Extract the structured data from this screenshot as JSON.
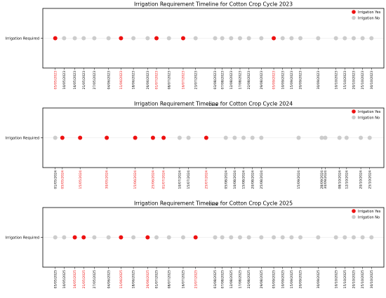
{
  "colors": {
    "yes": "#ee1111",
    "no": "#cccccc",
    "axis": "#000000",
    "yes_label": "#ee1111",
    "no_label": "#000000"
  },
  "chart_data": [
    {
      "type": "scatter",
      "title": "Irrigation Requirement Timeline for Cotton Crop Cycle 2023",
      "xlabel": "Date",
      "ylabel_tick": "Irrigation Required",
      "legend": [
        "Irrigation Yes",
        "Irrigation No"
      ],
      "legend_position": "top-right",
      "xlim": [
        "2023-04-28",
        "2023-11-06"
      ],
      "events": [
        {
          "date": "2023-05-05",
          "label": "05/05/2023",
          "irrigation": "Yes"
        },
        {
          "date": "2023-05-10",
          "label": "10/05/2023",
          "irrigation": "No"
        },
        {
          "date": "2023-05-16",
          "label": "16/05/2023",
          "irrigation": "No"
        },
        {
          "date": "2023-05-21",
          "label": "21/05/2023",
          "irrigation": "No"
        },
        {
          "date": "2023-05-27",
          "label": "27/05/2023",
          "irrigation": "No"
        },
        {
          "date": "2023-06-04",
          "label": "04/06/2023",
          "irrigation": "No"
        },
        {
          "date": "2023-06-11",
          "label": "11/06/2023",
          "irrigation": "Yes"
        },
        {
          "date": "2023-06-18",
          "label": "18/06/2023",
          "irrigation": "No"
        },
        {
          "date": "2023-06-26",
          "label": "26/06/2023",
          "irrigation": "No"
        },
        {
          "date": "2023-07-01",
          "label": "01/07/2023",
          "irrigation": "Yes"
        },
        {
          "date": "2023-07-08",
          "label": "08/07/2023",
          "irrigation": "No"
        },
        {
          "date": "2023-07-16",
          "label": "16/07/2023",
          "irrigation": "Yes"
        },
        {
          "date": "2023-07-23",
          "label": "23/07/2023",
          "irrigation": "No"
        },
        {
          "date": "2023-08-03",
          "label": "03/08/2023",
          "irrigation": "No"
        },
        {
          "date": "2023-08-07",
          "label": "07/08/2023",
          "irrigation": "No"
        },
        {
          "date": "2023-08-12",
          "label": "12/08/2023",
          "irrigation": "No"
        },
        {
          "date": "2023-08-17",
          "label": "17/08/2023",
          "irrigation": "No"
        },
        {
          "date": "2023-08-22",
          "label": "22/08/2023",
          "irrigation": "No"
        },
        {
          "date": "2023-08-29",
          "label": "29/08/2023",
          "irrigation": "No"
        },
        {
          "date": "2023-09-05",
          "label": "05/09/2023",
          "irrigation": "Yes"
        },
        {
          "date": "2023-09-10",
          "label": "10/09/2023",
          "irrigation": "No"
        },
        {
          "date": "2023-09-15",
          "label": "15/09/2023",
          "irrigation": "No"
        },
        {
          "date": "2023-09-20",
          "label": "20/09/2023",
          "irrigation": "No"
        },
        {
          "date": "2023-09-30",
          "label": "30/09/2023",
          "irrigation": "No"
        },
        {
          "date": "2023-10-10",
          "label": "10/10/2023",
          "irrigation": "No"
        },
        {
          "date": "2023-10-15",
          "label": "15/10/2023",
          "irrigation": "No"
        },
        {
          "date": "2023-10-20",
          "label": "20/10/2023",
          "irrigation": "No"
        },
        {
          "date": "2023-10-25",
          "label": "25/10/2023",
          "irrigation": "No"
        },
        {
          "date": "2023-10-30",
          "label": "30/10/2023",
          "irrigation": "No"
        }
      ]
    },
    {
      "type": "scatter",
      "title": "Irrigation Requirement Timeline for Cotton Crop Cycle 2024",
      "xlabel": "Date",
      "ylabel_tick": "Irrigation Required",
      "legend": [
        "Irrigation Yes",
        "Irrigation No"
      ],
      "legend_position": "top-right",
      "xlim": [
        "2024-04-24",
        "2024-11-02"
      ],
      "events": [
        {
          "date": "2024-05-01",
          "label": "01/05/2024",
          "irrigation": "No"
        },
        {
          "date": "2024-05-05",
          "label": "05/05/2024",
          "irrigation": "Yes"
        },
        {
          "date": "2024-05-15",
          "label": "15/05/2024",
          "irrigation": "Yes"
        },
        {
          "date": "2024-05-30",
          "label": "30/05/2024",
          "irrigation": "Yes"
        },
        {
          "date": "2024-06-15",
          "label": "15/06/2024",
          "irrigation": "Yes"
        },
        {
          "date": "2024-06-25",
          "label": "25/06/2024",
          "irrigation": "Yes"
        },
        {
          "date": "2024-07-01",
          "label": "01/07/2024",
          "irrigation": "Yes"
        },
        {
          "date": "2024-07-10",
          "label": "10/07/2024",
          "irrigation": "No"
        },
        {
          "date": "2024-07-15",
          "label": "15/07/2024",
          "irrigation": "No"
        },
        {
          "date": "2024-07-25",
          "label": "25/07/2024",
          "irrigation": "Yes"
        },
        {
          "date": "2024-08-05",
          "label": "05/08/2024",
          "irrigation": "No"
        },
        {
          "date": "2024-08-10",
          "label": "10/08/2024",
          "irrigation": "No"
        },
        {
          "date": "2024-08-15",
          "label": "15/08/2024",
          "irrigation": "No"
        },
        {
          "date": "2024-08-20",
          "label": "20/08/2024",
          "irrigation": "No"
        },
        {
          "date": "2024-08-25",
          "label": "25/08/2024",
          "irrigation": "No"
        },
        {
          "date": "2024-09-15",
          "label": "15/09/2024",
          "irrigation": "No"
        },
        {
          "date": "2024-09-28",
          "label": "28/09/2024",
          "irrigation": "No"
        },
        {
          "date": "2024-09-30",
          "label": "30/09/2024",
          "irrigation": "No"
        },
        {
          "date": "2024-10-08",
          "label": "08/10/2024",
          "irrigation": "No"
        },
        {
          "date": "2024-10-12",
          "label": "12/10/2024",
          "irrigation": "No"
        },
        {
          "date": "2024-10-20",
          "label": "20/10/2024",
          "irrigation": "No"
        },
        {
          "date": "2024-10-25",
          "label": "25/10/2024",
          "irrigation": "No"
        }
      ]
    },
    {
      "type": "scatter",
      "title": "Irrigation Requirement Timeline for Cotton Crop Cycle 2025",
      "xlabel": "Date",
      "ylabel_tick": "Irrigation Required",
      "legend": [
        "Irrigation Yes",
        "Irrigation No"
      ],
      "legend_position": "top-right",
      "xlim": [
        "2025-04-28",
        "2025-11-06"
      ],
      "events": [
        {
          "date": "2025-05-05",
          "label": "05/05/2025",
          "irrigation": "No"
        },
        {
          "date": "2025-05-10",
          "label": "10/05/2025",
          "irrigation": "No"
        },
        {
          "date": "2025-05-16",
          "label": "16/05/2025",
          "irrigation": "Yes"
        },
        {
          "date": "2025-05-21",
          "label": "21/05/2025",
          "irrigation": "Yes"
        },
        {
          "date": "2025-05-27",
          "label": "27/05/2025",
          "irrigation": "No"
        },
        {
          "date": "2025-06-04",
          "label": "04/06/2025",
          "irrigation": "No"
        },
        {
          "date": "2025-06-11",
          "label": "11/06/2025",
          "irrigation": "Yes"
        },
        {
          "date": "2025-06-18",
          "label": "18/06/2025",
          "irrigation": "No"
        },
        {
          "date": "2025-06-26",
          "label": "26/06/2025",
          "irrigation": "Yes"
        },
        {
          "date": "2025-07-01",
          "label": "01/07/2025",
          "irrigation": "No"
        },
        {
          "date": "2025-07-08",
          "label": "08/07/2025",
          "irrigation": "No"
        },
        {
          "date": "2025-07-16",
          "label": "16/07/2025",
          "irrigation": "No"
        },
        {
          "date": "2025-07-23",
          "label": "23/07/2025",
          "irrigation": "Yes"
        },
        {
          "date": "2025-08-03",
          "label": "03/08/2025",
          "irrigation": "No"
        },
        {
          "date": "2025-08-07",
          "label": "07/08/2025",
          "irrigation": "No"
        },
        {
          "date": "2025-08-12",
          "label": "12/08/2025",
          "irrigation": "No"
        },
        {
          "date": "2025-08-17",
          "label": "17/08/2025",
          "irrigation": "No"
        },
        {
          "date": "2025-08-22",
          "label": "22/08/2025",
          "irrigation": "No"
        },
        {
          "date": "2025-08-29",
          "label": "29/08/2025",
          "irrigation": "No"
        },
        {
          "date": "2025-09-05",
          "label": "05/09/2025",
          "irrigation": "No"
        },
        {
          "date": "2025-09-10",
          "label": "10/09/2025",
          "irrigation": "No"
        },
        {
          "date": "2025-09-15",
          "label": "15/09/2025",
          "irrigation": "No"
        },
        {
          "date": "2025-09-20",
          "label": "20/09/2025",
          "irrigation": "No"
        },
        {
          "date": "2025-09-30",
          "label": "30/09/2025",
          "irrigation": "No"
        },
        {
          "date": "2025-10-10",
          "label": "10/10/2025",
          "irrigation": "No"
        },
        {
          "date": "2025-10-15",
          "label": "15/10/2025",
          "irrigation": "No"
        },
        {
          "date": "2025-10-20",
          "label": "20/10/2025",
          "irrigation": "No"
        },
        {
          "date": "2025-10-25",
          "label": "25/10/2025",
          "irrigation": "No"
        },
        {
          "date": "2025-10-30",
          "label": "30/10/2025",
          "irrigation": "No"
        }
      ]
    }
  ]
}
